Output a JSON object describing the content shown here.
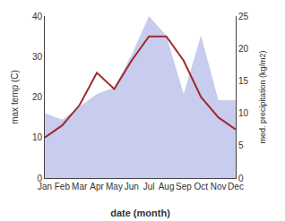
{
  "chart_data": {
    "type": "line",
    "xlabel": "date (month)",
    "ylabel": "max temp (C)",
    "y2label": "med. precipitation (kg/m2)",
    "categories": [
      "Jan",
      "Feb",
      "Mar",
      "Apr",
      "May",
      "Jun",
      "Jul",
      "Aug",
      "Sep",
      "Oct",
      "Nov",
      "Dec"
    ],
    "series": [
      {
        "type": "area",
        "axis": "y2",
        "color": "#c8ccee",
        "values": [
          10,
          9,
          11,
          13,
          14,
          19,
          25,
          22,
          13,
          22,
          12,
          12
        ]
      },
      {
        "type": "line",
        "color": "#9e2a2a",
        "values": [
          10,
          13,
          18,
          26,
          22,
          29,
          35,
          35,
          29,
          20,
          15,
          12
        ]
      }
    ],
    "ylim": [
      0,
      40
    ],
    "yticks": [
      0,
      10,
      20,
      30,
      40
    ],
    "y2lim": [
      0,
      25
    ],
    "y2ticks": [
      0,
      5,
      10,
      15,
      20,
      25
    ],
    "grid": false
  }
}
